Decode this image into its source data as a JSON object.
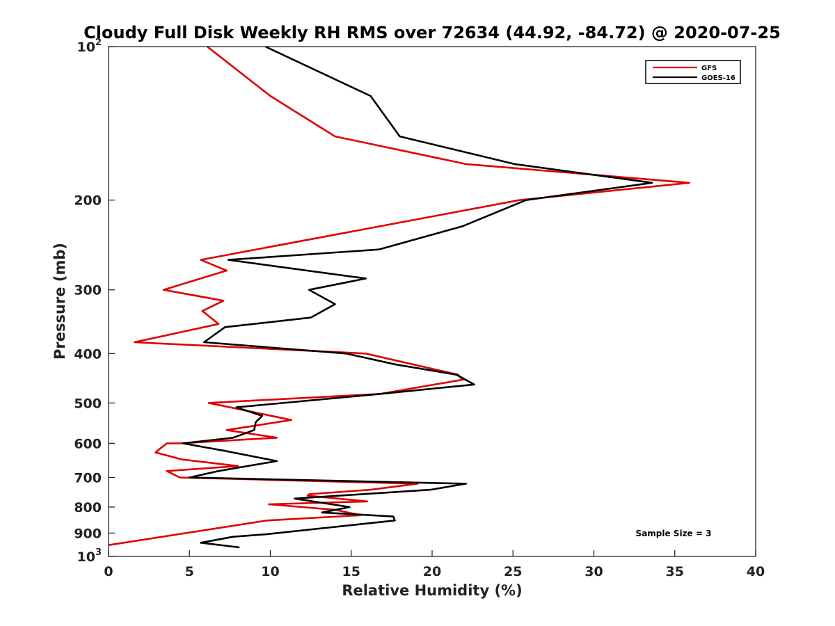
{
  "chart_data": {
    "type": "line",
    "title": "Cloudy Full Disk Weekly RH RMS over 72634 (44.92, -84.72) @ 2020-07-25",
    "xlabel": "Relative Humidity (%)",
    "ylabel": "Pressure (mb)",
    "xlim": [
      0,
      40
    ],
    "ylim": [
      100,
      1000
    ],
    "y_scale": "log",
    "y_reversed": true,
    "x_ticks": [
      "0",
      "5",
      "10",
      "15",
      "20",
      "25",
      "30",
      "35",
      "40"
    ],
    "y_ticks": [
      {
        "value": 100,
        "base": "10",
        "exp": "2"
      },
      {
        "value": 200,
        "label": "200"
      },
      {
        "value": 300,
        "label": "300"
      },
      {
        "value": 400,
        "label": "400"
      },
      {
        "value": 500,
        "label": "500"
      },
      {
        "value": 600,
        "label": "600"
      },
      {
        "value": 700,
        "label": "700"
      },
      {
        "value": 800,
        "label": "800"
      },
      {
        "value": 900,
        "label": "900"
      },
      {
        "value": 1000,
        "base": "10",
        "exp": "3"
      }
    ],
    "legend_position": "top-right",
    "annotation": "Sample Size = 3",
    "series": [
      {
        "name": "GFS",
        "color": "#e00000",
        "x": [
          6.1,
          10.0,
          14.0,
          22.1,
          35.9,
          25.4,
          5.7,
          7.3,
          3.4,
          7.1,
          5.8,
          6.8,
          1.6,
          15.9,
          21.6,
          21.9,
          16.8,
          6.2,
          11.3,
          7.3,
          10.4,
          4.4,
          3.6,
          2.9,
          4.5,
          8.0,
          3.6,
          4.4,
          19.1,
          16.2,
          12.4,
          12.3,
          16.0,
          9.9,
          14.0,
          15.6,
          9.8,
          0.0
        ],
        "y": [
          100,
          125,
          150,
          170,
          185,
          200,
          262,
          275,
          300,
          315,
          330,
          350,
          380,
          400,
          440,
          450,
          480,
          500,
          540,
          565,
          585,
          600,
          600,
          625,
          645,
          665,
          680,
          700,
          720,
          740,
          755,
          760,
          780,
          790,
          810,
          830,
          850,
          950
        ]
      },
      {
        "name": "GOES-16",
        "color": "#000000",
        "x": [
          9.7,
          16.2,
          18.0,
          25.1,
          33.6,
          25.8,
          21.9,
          16.7,
          7.4,
          15.9,
          12.4,
          14.0,
          12.5,
          7.2,
          5.9,
          14.7,
          17.7,
          21.5,
          22.6,
          16.8,
          7.9,
          9.5,
          9.1,
          9.0,
          7.7,
          4.6,
          7.1,
          10.4,
          6.8,
          5.0,
          22.1,
          19.9,
          11.5,
          14.9,
          13.2,
          17.6,
          17.7,
          9.7,
          7.7,
          5.7,
          8.1
        ],
        "y": [
          100,
          125,
          150,
          170,
          185,
          200,
          225,
          250,
          262,
          285,
          300,
          320,
          340,
          355,
          380,
          400,
          420,
          440,
          460,
          480,
          510,
          530,
          545,
          565,
          585,
          600,
          620,
          650,
          680,
          700,
          720,
          740,
          770,
          800,
          820,
          835,
          850,
          905,
          915,
          940,
          960
        ]
      }
    ]
  }
}
